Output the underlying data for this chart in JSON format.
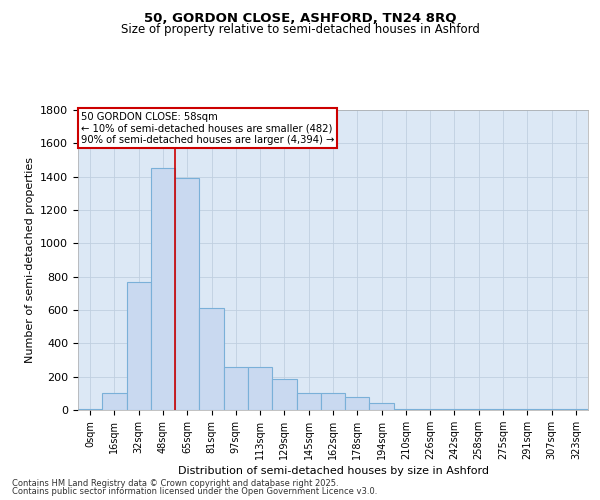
{
  "title_line1": "50, GORDON CLOSE, ASHFORD, TN24 8RQ",
  "title_line2": "Size of property relative to semi-detached houses in Ashford",
  "xlabel": "Distribution of semi-detached houses by size in Ashford",
  "ylabel": "Number of semi-detached properties",
  "categories": [
    "0sqm",
    "16sqm",
    "32sqm",
    "48sqm",
    "65sqm",
    "81sqm",
    "97sqm",
    "113sqm",
    "129sqm",
    "145sqm",
    "162sqm",
    "178sqm",
    "194sqm",
    "210sqm",
    "226sqm",
    "242sqm",
    "258sqm",
    "275sqm",
    "291sqm",
    "307sqm",
    "323sqm"
  ],
  "bar_heights": [
    5,
    100,
    770,
    1450,
    1390,
    610,
    260,
    260,
    185,
    100,
    100,
    80,
    40,
    5,
    5,
    5,
    5,
    5,
    5,
    5,
    5
  ],
  "bar_color": "#c9d9f0",
  "bar_edge_color": "#7ab0d8",
  "grid_color": "#c0cfe0",
  "background_color": "#dce8f5",
  "vline_x": 3.5,
  "vline_color": "#cc0000",
  "annotation_title": "50 GORDON CLOSE: 58sqm",
  "annotation_line1": "← 10% of semi-detached houses are smaller (482)",
  "annotation_line2": "90% of semi-detached houses are larger (4,394) →",
  "annotation_box_color": "#cc0000",
  "ylim": [
    0,
    1800
  ],
  "yticks": [
    0,
    200,
    400,
    600,
    800,
    1000,
    1200,
    1400,
    1600,
    1800
  ],
  "footnote_line1": "Contains HM Land Registry data © Crown copyright and database right 2025.",
  "footnote_line2": "Contains public sector information licensed under the Open Government Licence v3.0."
}
